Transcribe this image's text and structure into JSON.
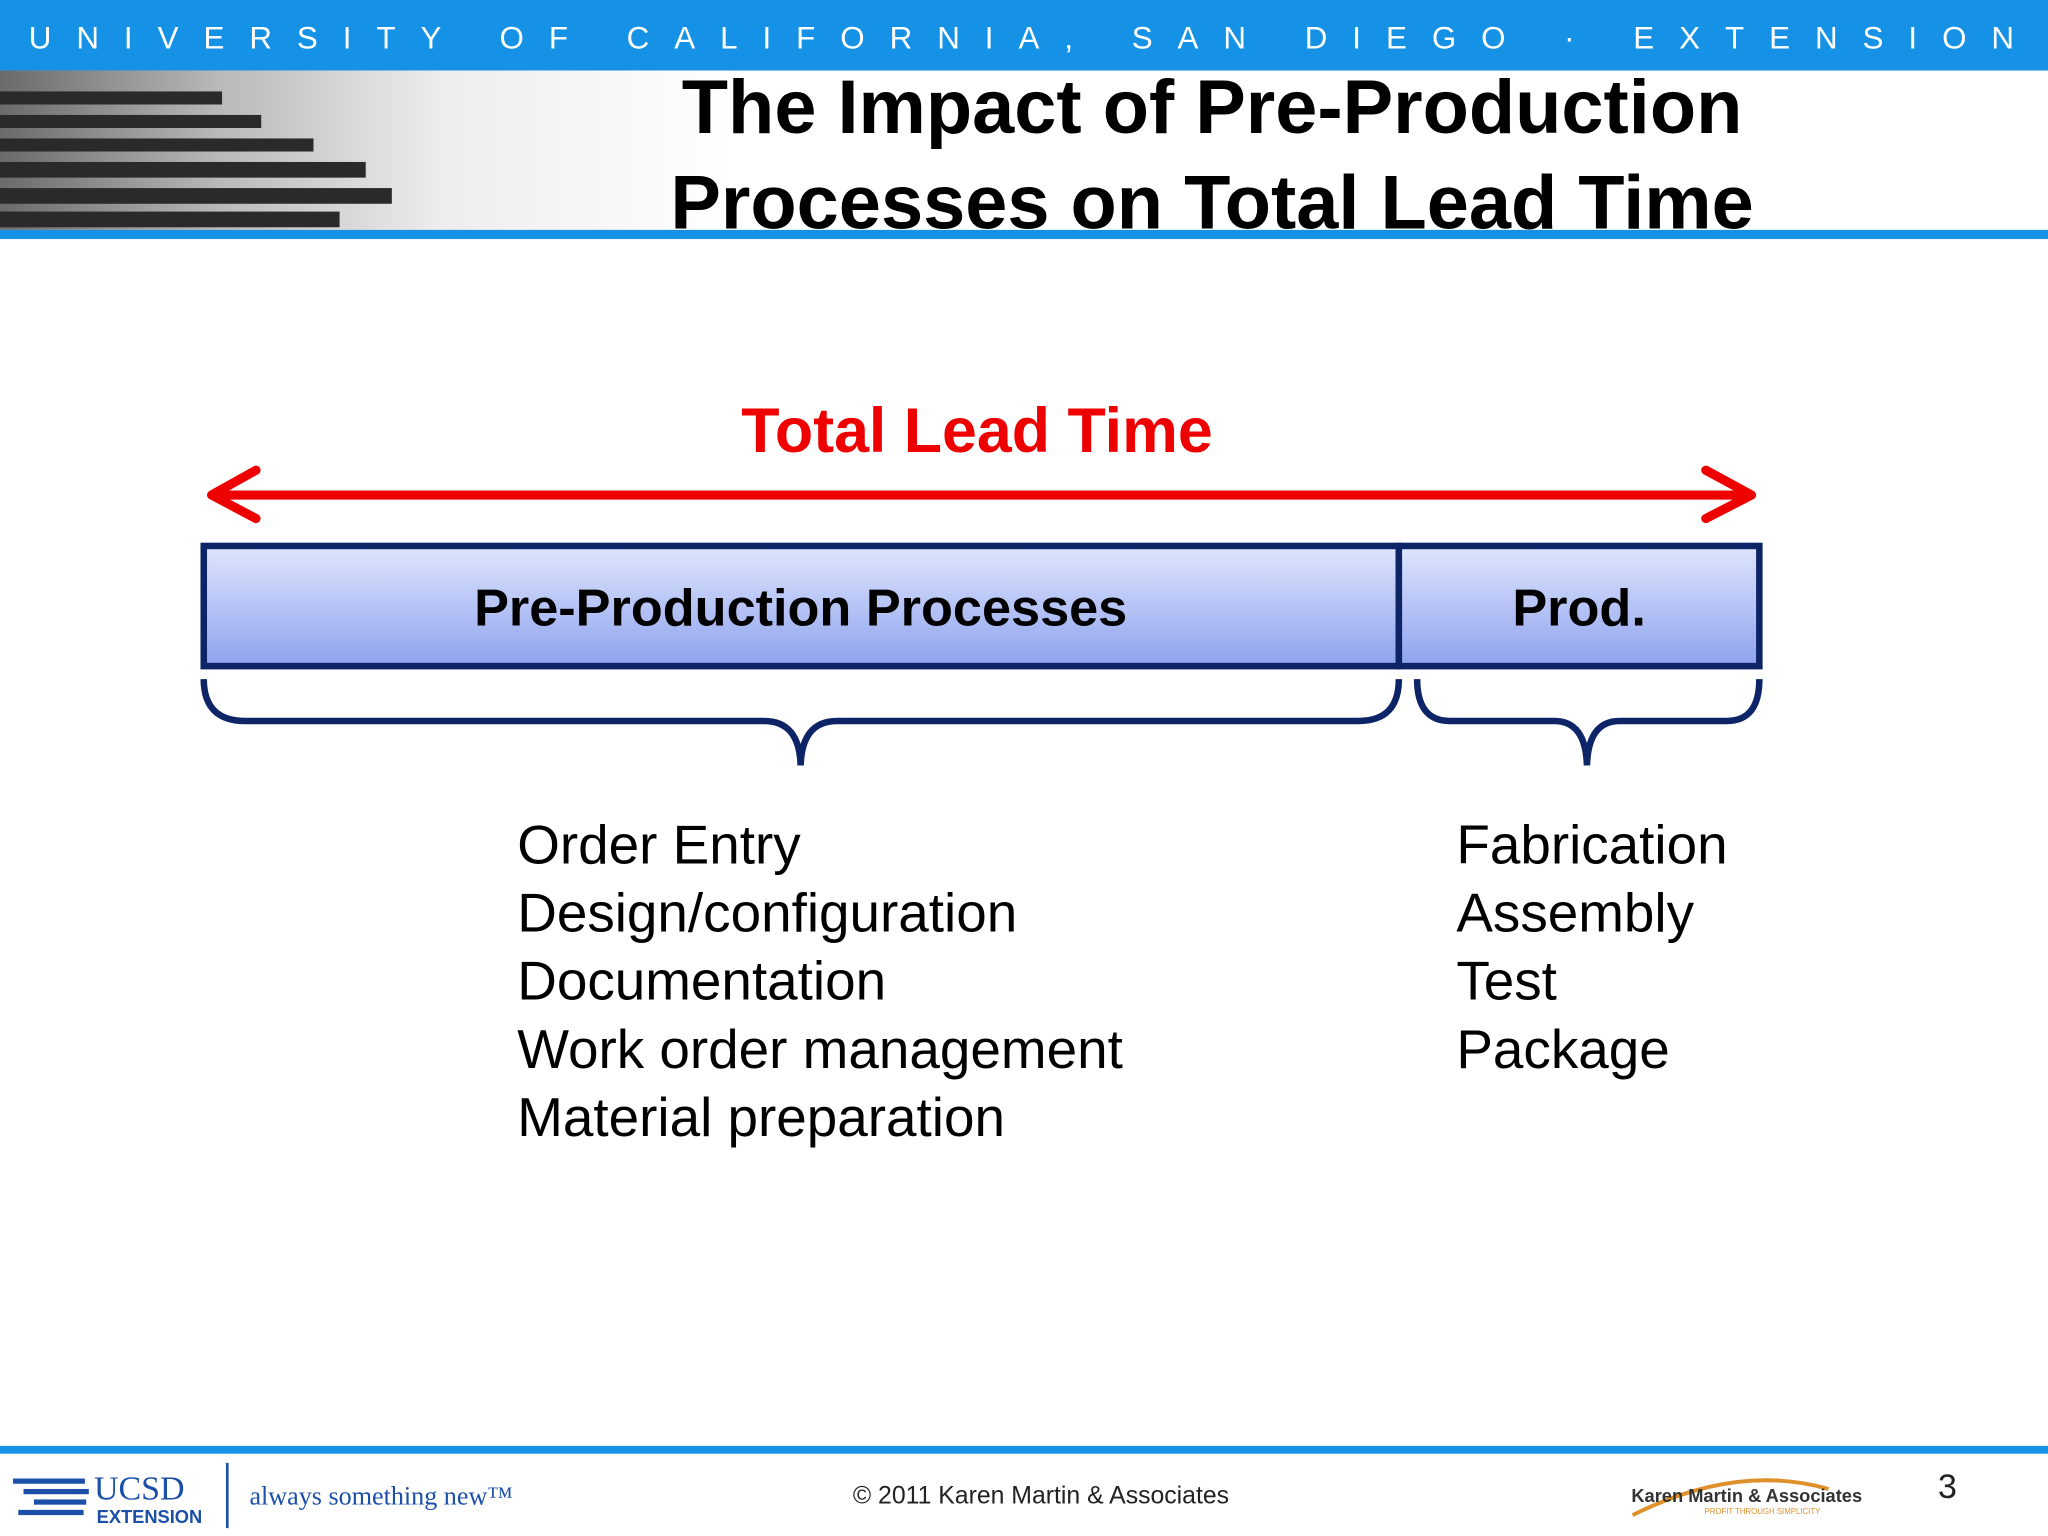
{
  "header": {
    "banner": "UNIVERSITY OF CALIFORNIA, SAN DIEGO · EXTENSION",
    "title_lines": [
      "The Impact of Pre-Production",
      "Processes on Total Lead Time"
    ]
  },
  "diagram": {
    "span_label": "Total Lead Time",
    "segments": [
      {
        "label": "Pre-Production Processes",
        "items": [
          "Order Entry",
          "Design/configuration",
          "Documentation",
          "Work order management",
          "Material preparation"
        ]
      },
      {
        "label": "Prod.",
        "items": [
          "Fabrication",
          "Assembly",
          "Test",
          "Package"
        ]
      }
    ]
  },
  "footer": {
    "logo": "UCSD",
    "logo_sub": "EXTENSION",
    "tagline": "always something new™",
    "copyright": "© 2011 Karen Martin & Associates",
    "company": "Karen Martin & Associates",
    "company_tagline": "PROFIT THROUGH SIMPLICITY",
    "page_number": "3"
  }
}
